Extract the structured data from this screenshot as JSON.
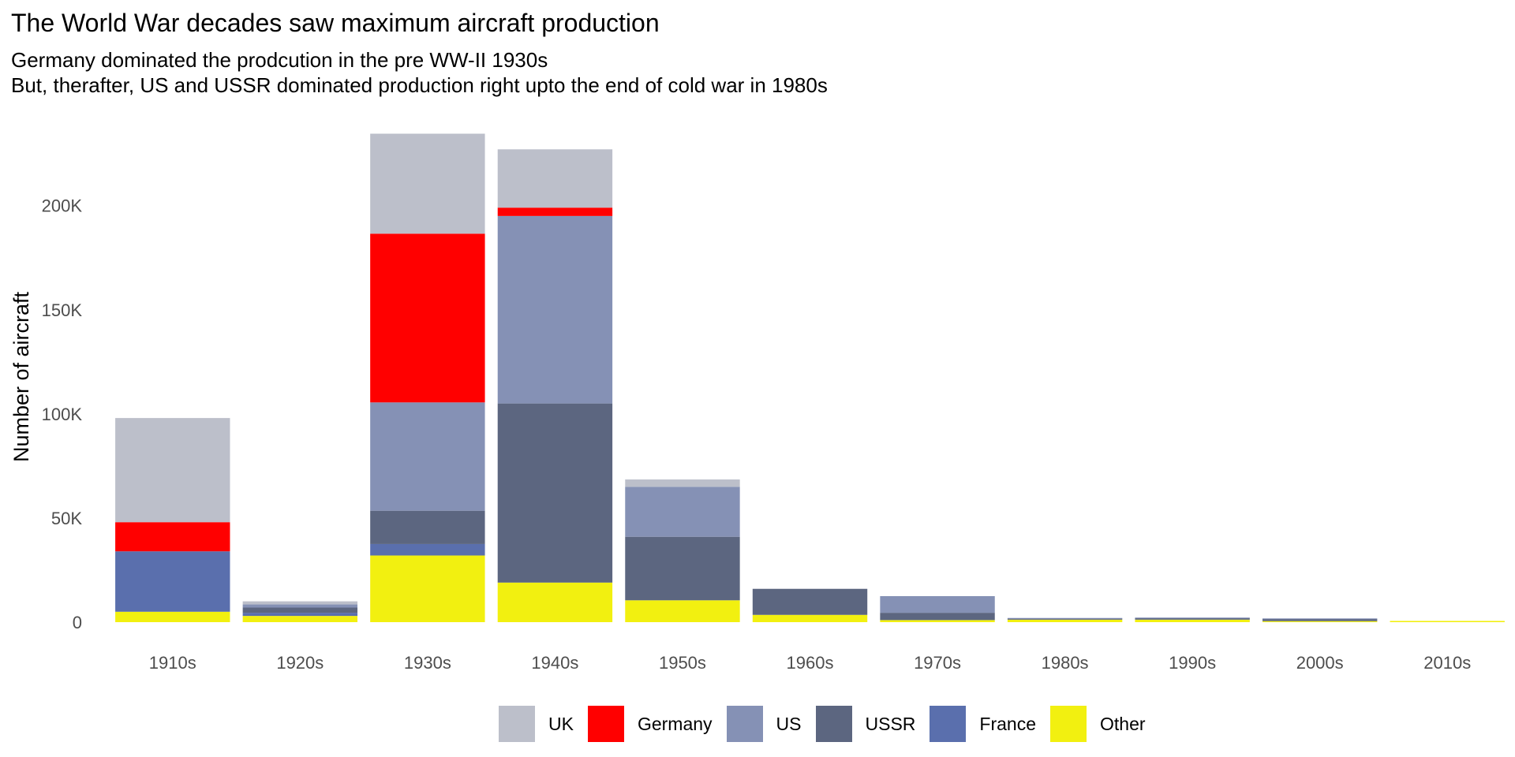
{
  "title": "The World War decades saw maximum aircraft production",
  "subtitle_line1": "Germany dominated the prodcution in the pre WW-II 1930s",
  "subtitle_line2": "But, therafter, US and USSR dominated production right upto the end of cold war in 1980s",
  "chart_data": {
    "type": "bar",
    "stacked": true,
    "title": "The World War decades saw maximum aircraft production",
    "subtitle": "Germany dominated the prodcution in the pre WW-II 1930s\nBut, therafter, US and USSR dominated production right upto the end of cold war in 1980s",
    "xlabel": "",
    "ylabel": "Number of aircraft",
    "ylim": [
      0,
      235000
    ],
    "yticks": [
      0,
      50000,
      100000,
      150000,
      200000
    ],
    "ytick_labels": [
      "0",
      "50K",
      "100K",
      "150K",
      "200K"
    ],
    "grid": false,
    "legend_position": "bottom",
    "categories": [
      "1910s",
      "1920s",
      "1930s",
      "1940s",
      "1950s",
      "1960s",
      "1970s",
      "1980s",
      "1990s",
      "2000s",
      "2010s"
    ],
    "series": [
      {
        "name": "Other",
        "color": "#F2F010",
        "values": [
          5000,
          3000,
          32000,
          19000,
          10500,
          3500,
          1000,
          1200,
          1200,
          500,
          600
        ]
      },
      {
        "name": "France",
        "color": "#5A6FAD",
        "values": [
          29000,
          1500,
          5500,
          0,
          0,
          0,
          0,
          0,
          0,
          0,
          0
        ]
      },
      {
        "name": "USSR",
        "color": "#5C6680",
        "values": [
          0,
          2500,
          16000,
          86000,
          30500,
          12500,
          3500,
          500,
          700,
          1000,
          0
        ]
      },
      {
        "name": "US",
        "color": "#8591B5",
        "values": [
          0,
          1500,
          52000,
          90000,
          24000,
          0,
          8000,
          300,
          300,
          300,
          0
        ]
      },
      {
        "name": "Germany",
        "color": "#FF0000",
        "values": [
          14000,
          0,
          81000,
          4000,
          0,
          0,
          0,
          0,
          0,
          0,
          0
        ]
      },
      {
        "name": "UK",
        "color": "#BCBFCA",
        "values": [
          50000,
          1500,
          48000,
          28000,
          3500,
          0,
          0,
          0,
          0,
          0,
          0
        ]
      }
    ]
  },
  "legend": [
    {
      "label": "UK",
      "color": "#BCBFCA"
    },
    {
      "label": "Germany",
      "color": "#FF0000"
    },
    {
      "label": "US",
      "color": "#8591B5"
    },
    {
      "label": "USSR",
      "color": "#5C6680"
    },
    {
      "label": "France",
      "color": "#5A6FAD"
    },
    {
      "label": "Other",
      "color": "#F2F010"
    }
  ]
}
